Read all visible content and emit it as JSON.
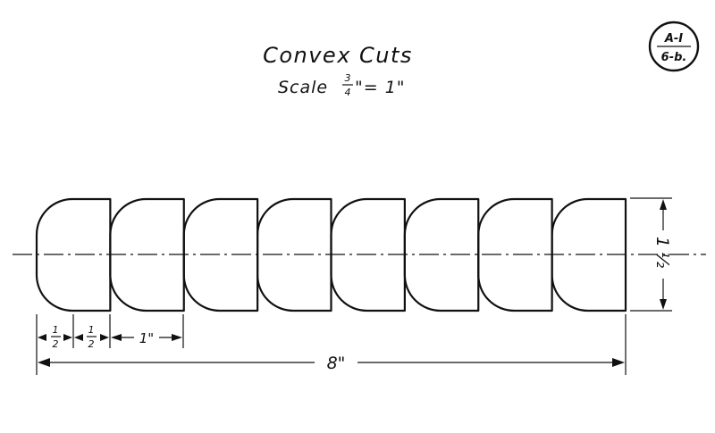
{
  "title": "Convex Cuts",
  "scale": {
    "prefix": "Scale",
    "numerator": "3",
    "denominator": "4",
    "suffix": "\"= 1\""
  },
  "sheet_badge": {
    "top": "A-I",
    "bottom": "6-b."
  },
  "cuts": {
    "count": 8
  },
  "dimensions": {
    "total_length": "8\"",
    "height": {
      "whole": "1",
      "fraction": "½"
    },
    "half_a": {
      "numerator": "1",
      "denominator": "2"
    },
    "half_b": {
      "numerator": "1",
      "denominator": "2"
    },
    "one_inch": "1\""
  }
}
